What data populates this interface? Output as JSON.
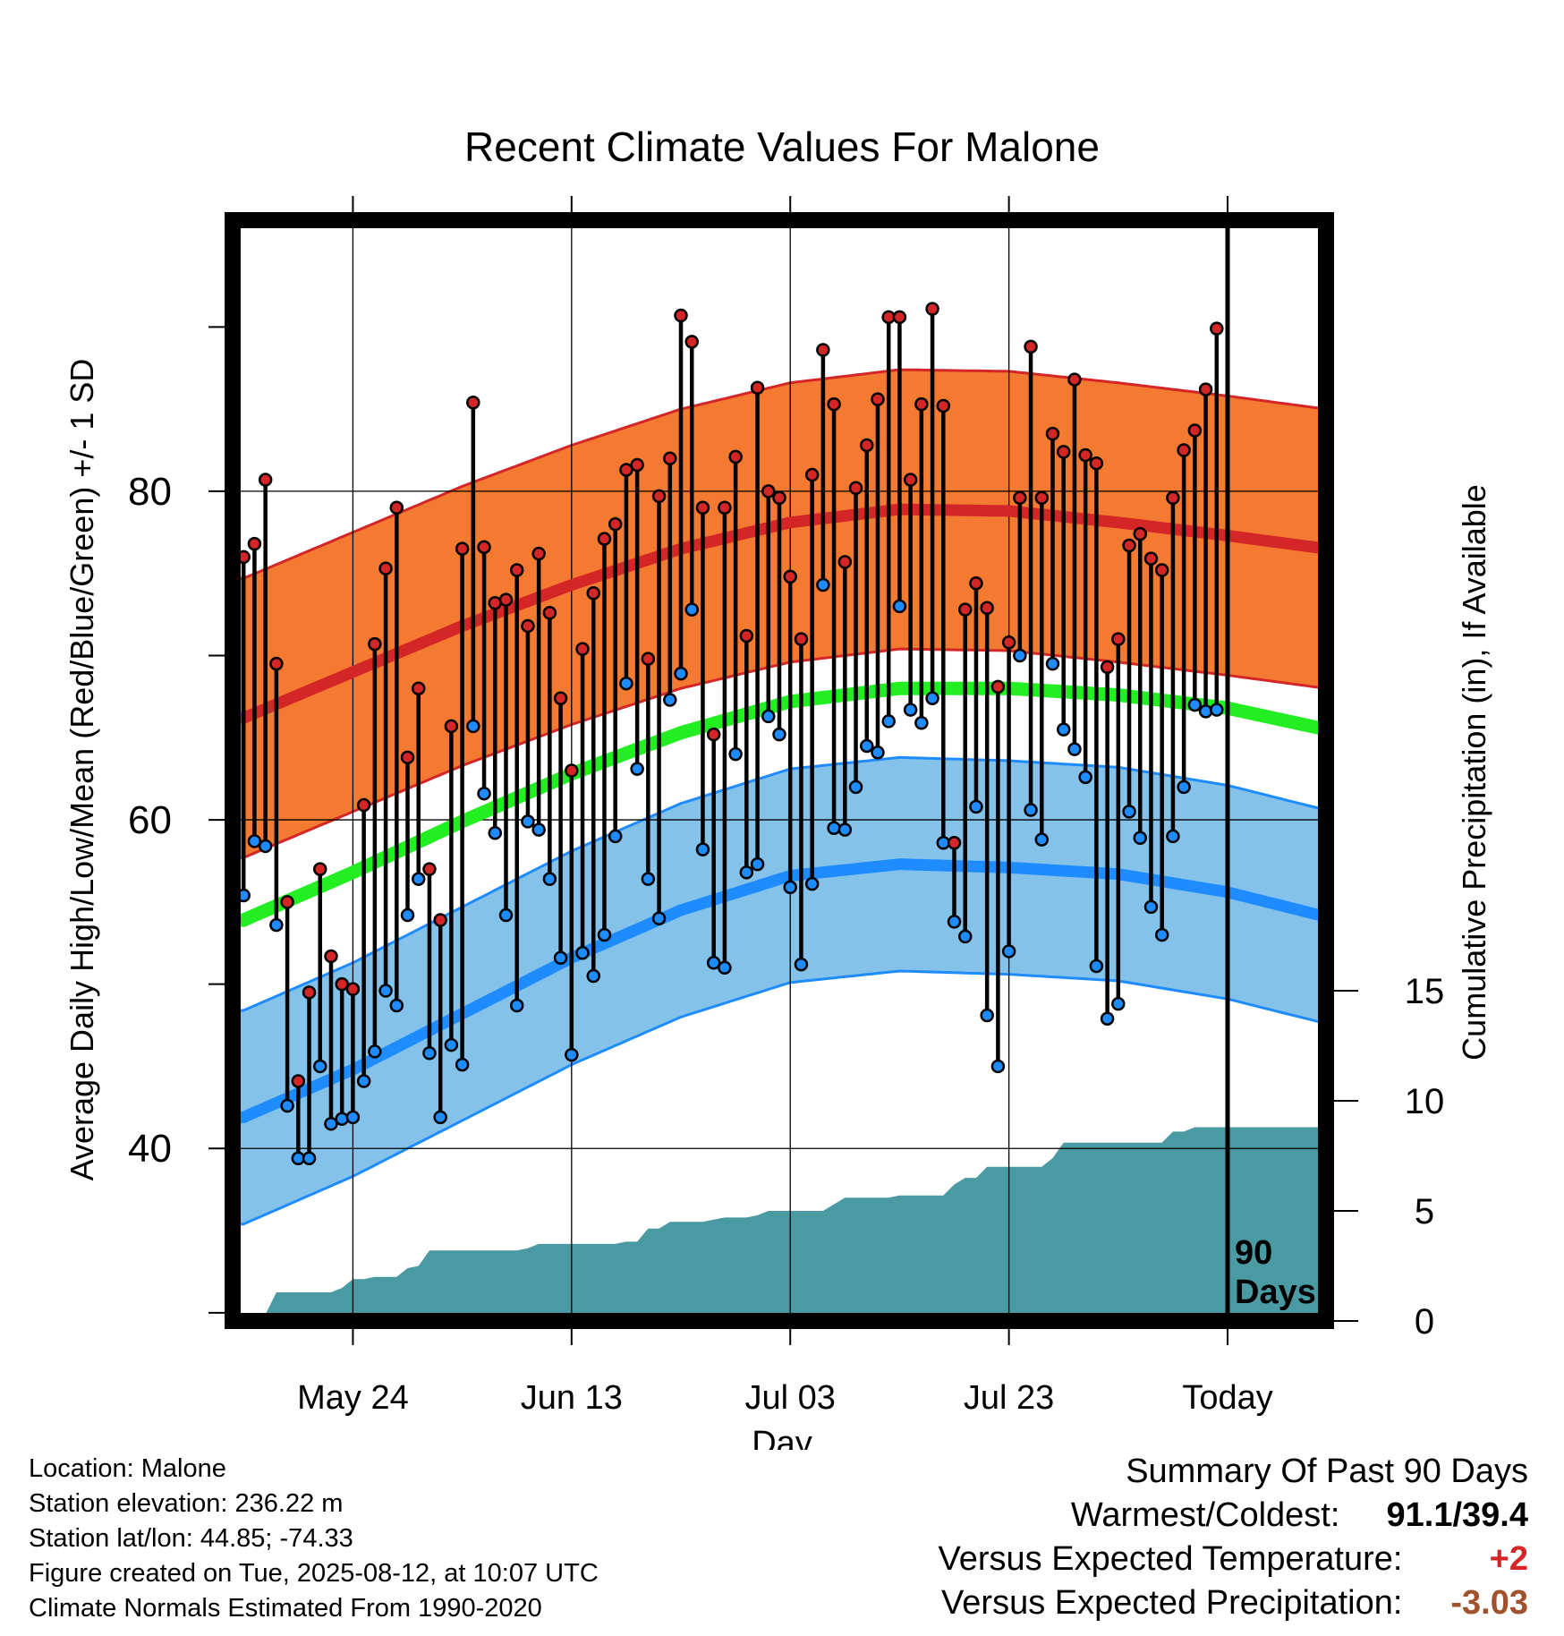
{
  "chart_data": {
    "type": "line",
    "title": "Recent Climate Values For Malone",
    "xlabel": "Day",
    "ylabel": "Average Daily High/Low/Mean (Red/Blue/Green) +/- 1 SD",
    "y2label": "Cumulative Precipitation (in), If Available",
    "x_tick_labels": [
      "May 24",
      "Jun 13",
      "Jul 03",
      "Jul 23",
      "Today"
    ],
    "y_tick_labels": [
      "40",
      "60",
      "80"
    ],
    "y2_tick_labels": [
      "0",
      "5",
      "10",
      "15"
    ],
    "x_range_days": [
      -91,
      9
    ],
    "x_tick_days": [
      -80,
      -60,
      -40,
      -20,
      0
    ],
    "ylim": [
      29.5,
      96.5
    ],
    "y2lim": [
      0,
      50
    ],
    "days_label": [
      "90",
      "Days"
    ],
    "grid": true,
    "normals": {
      "x_days": [
        -90,
        -80,
        -70,
        -60,
        -50,
        -40,
        -30,
        -20,
        -10,
        0,
        9
      ],
      "high_mean": [
        66.2,
        69.0,
        71.8,
        74.3,
        76.5,
        78.1,
        78.9,
        78.8,
        78.1,
        77.3,
        76.5
      ],
      "high_sd": 8.5,
      "low_mean": [
        41.9,
        44.8,
        48.2,
        51.6,
        54.5,
        56.6,
        57.3,
        57.1,
        56.7,
        55.6,
        54.1
      ],
      "low_sd": 6.5,
      "mean": [
        53.9,
        56.8,
        59.9,
        62.8,
        65.3,
        67.2,
        68.0,
        68.0,
        67.6,
        66.8,
        65.5
      ],
      "colors": {
        "high": "#d42626",
        "high_band": "#f37a30",
        "low": "#1e8cff",
        "low_band": "#85c2ea",
        "mean": "#22ee22",
        "precip": "#4a9aa3"
      }
    },
    "observations": {
      "x_days": [
        -90,
        -89,
        -88,
        -87,
        -86,
        -85,
        -84,
        -83,
        -82,
        -81,
        -80,
        -79,
        -78,
        -77,
        -76,
        -75,
        -74,
        -73,
        -72,
        -71,
        -70,
        -69,
        -68,
        -67,
        -66,
        -65,
        -64,
        -63,
        -62,
        -61,
        -60,
        -59,
        -58,
        -57,
        -56,
        -55,
        -54,
        -53,
        -52,
        -51,
        -50,
        -49,
        -48,
        -47,
        -46,
        -45,
        -44,
        -43,
        -42,
        -41,
        -40,
        -39,
        -38,
        -37,
        -36,
        -35,
        -34,
        -33,
        -32,
        -31,
        -30,
        -29,
        -28,
        -27,
        -26,
        -25,
        -24,
        -23,
        -22,
        -21,
        -20,
        -19,
        -18,
        -17,
        -16,
        -15,
        -14,
        -13,
        -12,
        -11,
        -10,
        -9,
        -8,
        -7,
        -6,
        -5,
        -4,
        -3,
        -2,
        -1
      ],
      "high": [
        76.0,
        76.8,
        80.7,
        69.5,
        55.0,
        44.1,
        49.5,
        57.0,
        51.7,
        50.0,
        49.7,
        60.9,
        70.7,
        75.3,
        79.0,
        63.8,
        68.0,
        57.0,
        53.9,
        65.7,
        76.5,
        85.4,
        76.6,
        73.2,
        73.4,
        75.2,
        71.8,
        76.2,
        72.6,
        67.4,
        63.0,
        70.4,
        73.8,
        77.1,
        78.0,
        81.3,
        81.6,
        69.8,
        79.7,
        82.0,
        90.7,
        89.1,
        79.0,
        65.2,
        79.0,
        82.1,
        71.2,
        86.3,
        80.0,
        79.6,
        74.8,
        71.0,
        81.0,
        88.6,
        85.3,
        75.7,
        80.2,
        82.8,
        85.6,
        90.6,
        90.6,
        80.7,
        85.3,
        91.1,
        85.2,
        58.6,
        72.8,
        74.4,
        72.9,
        68.1,
        70.8,
        79.6,
        88.8,
        79.6,
        83.5,
        82.4,
        86.8,
        82.2,
        81.7,
        69.3,
        71.0,
        76.7,
        77.4,
        75.9,
        75.2,
        79.6,
        82.5,
        83.7,
        86.2,
        89.9
      ],
      "low": [
        55.4,
        58.7,
        58.4,
        53.6,
        42.6,
        39.4,
        39.4,
        45.0,
        41.5,
        41.8,
        41.9,
        44.1,
        45.9,
        49.6,
        48.7,
        54.2,
        56.4,
        45.8,
        41.9,
        46.3,
        45.1,
        65.7,
        61.6,
        59.2,
        54.2,
        48.7,
        59.9,
        59.4,
        56.4,
        51.6,
        45.7,
        51.9,
        50.5,
        53.0,
        59.0,
        68.3,
        63.1,
        56.4,
        54.0,
        67.3,
        68.9,
        72.8,
        58.2,
        51.3,
        51.0,
        64.0,
        56.8,
        57.3,
        66.3,
        65.2,
        55.9,
        51.2,
        56.1,
        74.3,
        59.5,
        59.4,
        62.0,
        64.5,
        64.1,
        66.0,
        73.0,
        66.7,
        65.9,
        67.4,
        58.6,
        53.8,
        52.9,
        60.8,
        48.1,
        45.0,
        52.0,
        70.0,
        60.6,
        58.8,
        69.5,
        65.5,
        64.3,
        62.6,
        51.1,
        47.9,
        48.8,
        60.5,
        58.9,
        54.7,
        53.0,
        59.0,
        62.0,
        67.0,
        66.6,
        66.7
      ],
      "colors": {
        "high_marker": "#d42626",
        "low_marker": "#1e8cff",
        "stem": "#000000"
      }
    },
    "precipitation_cumulative": {
      "x_days": [
        -90,
        -89,
        -88,
        -87,
        -86,
        -85,
        -84,
        -83,
        -82,
        -81,
        -80,
        -79,
        -78,
        -77,
        -76,
        -75,
        -74,
        -73,
        -72,
        -71,
        -70,
        -69,
        -68,
        -67,
        -66,
        -65,
        -64,
        -63,
        -62,
        -61,
        -60,
        -59,
        -58,
        -57,
        -56,
        -55,
        -54,
        -53,
        -52,
        -51,
        -50,
        -49,
        -48,
        -47,
        -46,
        -45,
        -44,
        -43,
        -42,
        -41,
        -40,
        -39,
        -38,
        -37,
        -36,
        -35,
        -34,
        -33,
        -32,
        -31,
        -30,
        -29,
        -28,
        -27,
        -26,
        -25,
        -24,
        -23,
        -22,
        -21,
        -20,
        -19,
        -18,
        -17,
        -16,
        -15,
        -14,
        -13,
        -12,
        -11,
        -10,
        -9,
        -8,
        -7,
        -6,
        -5,
        -4,
        -3,
        -2,
        -1,
        0,
        9
      ],
      "values": [
        0,
        0,
        0.3,
        1.3,
        1.3,
        1.3,
        1.3,
        1.3,
        1.3,
        1.5,
        1.9,
        1.9,
        2.0,
        2.0,
        2.0,
        2.4,
        2.5,
        3.2,
        3.2,
        3.2,
        3.2,
        3.2,
        3.2,
        3.2,
        3.2,
        3.2,
        3.3,
        3.5,
        3.5,
        3.5,
        3.5,
        3.5,
        3.5,
        3.5,
        3.5,
        3.6,
        3.6,
        4.2,
        4.2,
        4.5,
        4.5,
        4.5,
        4.5,
        4.6,
        4.7,
        4.7,
        4.7,
        4.8,
        5.0,
        5.0,
        5.0,
        5.0,
        5.0,
        5.0,
        5.3,
        5.6,
        5.6,
        5.6,
        5.6,
        5.6,
        5.7,
        5.7,
        5.7,
        5.7,
        5.7,
        6.2,
        6.5,
        6.5,
        7.0,
        7.0,
        7.0,
        7.0,
        7.0,
        7.0,
        7.4,
        8.1,
        8.1,
        8.1,
        8.1,
        8.1,
        8.1,
        8.1,
        8.1,
        8.1,
        8.1,
        8.6,
        8.6,
        8.8,
        8.8,
        8.8,
        8.8,
        8.8
      ]
    }
  },
  "info": {
    "location": "Location: Malone",
    "elevation": "Station elevation: 236.22 m",
    "latlon": "Station lat/lon: 44.85; -74.33",
    "created": "Figure created on Tue, 2025-08-12, at 10:07 UTC",
    "normals_period": "Climate Normals Estimated From 1990-2020"
  },
  "summary": {
    "heading": "Summary Of Past 90 Days",
    "warm_cold_label": "Warmest/Coldest:",
    "warm_cold_value": "91.1/39.4",
    "temp_label": "Versus Expected Temperature:",
    "temp_value": "+2",
    "temp_color": "#d42626",
    "precip_label": "Versus Expected Precipitation:",
    "precip_value": "-3.03",
    "precip_color": "#a0522d"
  }
}
